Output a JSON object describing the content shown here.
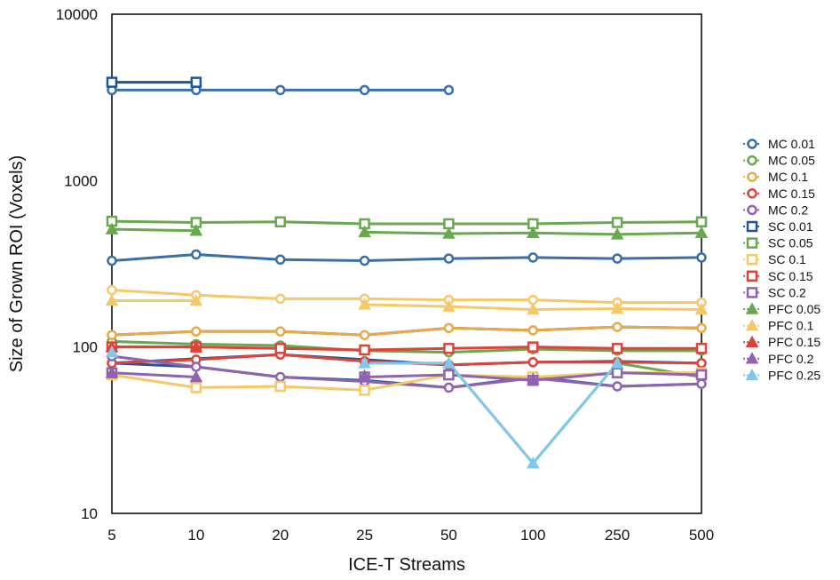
{
  "chart_data": {
    "type": "line",
    "title": "",
    "xlabel": "ICE-T Streams",
    "ylabel": "Size of Grown ROI (Voxels)",
    "x_categories": [
      "5",
      "10",
      "20",
      "25",
      "50",
      "100",
      "250",
      "500"
    ],
    "y_scale": "log",
    "ylim": [
      10,
      10000
    ],
    "y_ticks": [
      "10",
      "100",
      "1000",
      "10000"
    ],
    "legend_position": "right",
    "grid": false,
    "series": [
      {
        "name": "MC 0.01",
        "color": "#3a6ea5",
        "marker": "circle",
        "values": [
          3500,
          3500,
          3500,
          3500,
          3500,
          null,
          null,
          null
        ]
      },
      {
        "name": "MC 0.05",
        "color": "#6aa84f",
        "marker": "circle",
        "values": [
          108,
          104,
          102,
          95,
          93,
          97,
          95,
          95
        ]
      },
      {
        "name": "MC 0.1",
        "color": "#e8a94a",
        "marker": "circle",
        "values": [
          118,
          124,
          124,
          118,
          130,
          126,
          132,
          130
        ]
      },
      {
        "name": "MC 0.15",
        "color": "#d9453a",
        "marker": "circle",
        "values": [
          80,
          84,
          90,
          82,
          78,
          81,
          81,
          80
        ]
      },
      {
        "name": "MC 0.2",
        "color": "#8e63b0",
        "marker": "circle",
        "values": [
          88,
          76,
          66,
          62,
          57,
          65,
          58,
          60
        ]
      },
      {
        "name": "SC 0.01",
        "color": "#1f5596",
        "marker": "square",
        "values": [
          3900,
          3900,
          null,
          null,
          null,
          null,
          null,
          null
        ]
      },
      {
        "name": "SC 0.05",
        "color": "#6aa84f",
        "marker": "square",
        "values": [
          570,
          560,
          565,
          550,
          550,
          550,
          560,
          565
        ]
      },
      {
        "name": "SC 0.1",
        "color": "#f5c86a",
        "marker": "square",
        "values": [
          68,
          57,
          58,
          55,
          68,
          66,
          70,
          70
        ]
      },
      {
        "name": "SC 0.15",
        "color": "#d9453a",
        "marker": "square",
        "values": [
          100,
          100,
          98,
          96,
          98,
          100,
          98,
          98
        ]
      },
      {
        "name": "SC 0.2",
        "color": "#8e63b0",
        "marker": "square",
        "values": [
          70,
          null,
          null,
          66,
          68,
          63,
          70,
          68
        ]
      },
      {
        "name": "PFC 0.05",
        "color": "#6aa84f",
        "marker": "triangle",
        "values": [
          510,
          500,
          null,
          490,
          480,
          485,
          475,
          485
        ]
      },
      {
        "name": "PFC 0.1",
        "color": "#f5c86a",
        "marker": "triangle",
        "values": [
          190,
          190,
          null,
          180,
          175,
          168,
          170,
          168
        ]
      },
      {
        "name": "PFC 0.15",
        "color": "#d9453a",
        "marker": "triangle",
        "values": [
          100,
          100,
          null,
          null,
          null,
          null,
          null,
          null
        ]
      },
      {
        "name": "PFC 0.2",
        "color": "#8e63b0",
        "marker": "triangle",
        "values": [
          70,
          66,
          null,
          67,
          null,
          64,
          null,
          null
        ]
      },
      {
        "name": "PFC 0.25",
        "color": "#7ec8ee",
        "marker": "triangle",
        "values": [
          93,
          null,
          null,
          80,
          80,
          20,
          80,
          null
        ]
      }
    ],
    "extra_lines": [
      {
        "name": "",
        "color": "#3a6ea5",
        "marker": "circle",
        "values": [
          330,
          360,
          335,
          330,
          340,
          345,
          340,
          345
        ]
      },
      {
        "name": "",
        "color": "#f5c86a",
        "marker": "circle",
        "values": [
          220,
          205,
          195,
          195,
          192,
          192,
          185,
          185
        ]
      },
      {
        "name": "",
        "color": "#1f5596",
        "marker": "none",
        "values": [
          118,
          124,
          124,
          118,
          130,
          126,
          132,
          130
        ]
      },
      {
        "name": "",
        "color": "#1f5596",
        "marker": "none",
        "values": [
          80,
          85,
          90,
          84,
          78,
          81,
          82,
          80
        ]
      },
      {
        "name": "",
        "color": "#6aa84f",
        "marker": "none",
        "values": [
          93,
          null,
          null,
          80,
          80,
          20,
          80,
          66
        ]
      },
      {
        "name": "",
        "color": "#1f5596",
        "marker": "none",
        "values": [
          80,
          76,
          66,
          63,
          57,
          66,
          58,
          60
        ]
      }
    ]
  }
}
